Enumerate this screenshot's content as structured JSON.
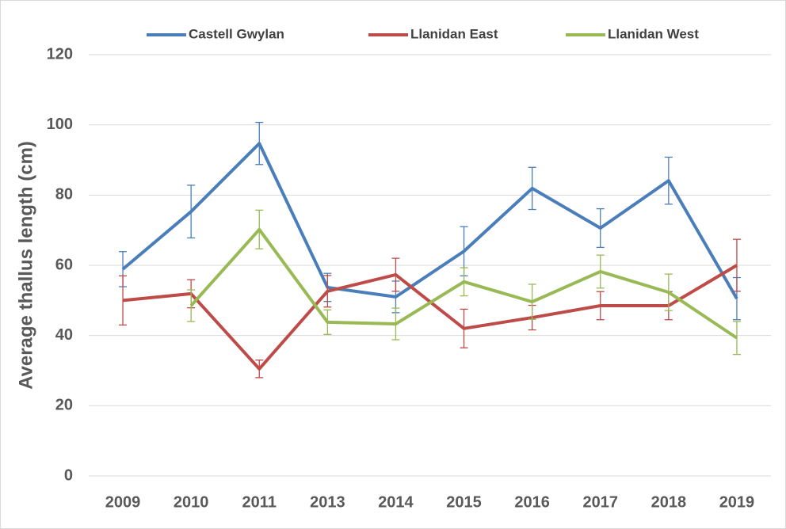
{
  "chart_data": {
    "type": "line",
    "y_label": "Average thallus length (cm)",
    "categories": [
      "2009",
      "2010",
      "2011",
      "2013",
      "2014",
      "2015",
      "2016",
      "2017",
      "2018",
      "2019"
    ],
    "series": [
      {
        "name": "Castell Gwylan",
        "color": "#4a7ebb",
        "values": [
          58.9,
          75.3,
          94.7,
          53.7,
          51,
          64,
          81.9,
          70.6,
          84.1,
          50.5
        ],
        "errors": [
          5,
          7.5,
          6,
          4,
          4.5,
          7,
          6,
          5.5,
          6.7,
          6
        ]
      },
      {
        "name": "Llanidan East",
        "color": "#be4b48",
        "values": [
          50,
          51.9,
          30.5,
          52.6,
          57.3,
          42,
          45.1,
          48.5,
          48.5,
          60
        ],
        "errors": [
          7,
          4,
          2.5,
          4.5,
          4.7,
          5.5,
          3.5,
          4,
          4,
          7.4
        ]
      },
      {
        "name": "Llanidan West",
        "color": "#98b954",
        "values": [
          null,
          48.5,
          70.2,
          43.8,
          43.3,
          55.3,
          49.6,
          58.2,
          52.3,
          39.3
        ],
        "errors": [
          null,
          4.5,
          5.5,
          3.5,
          4.5,
          4,
          5,
          4.7,
          5.2,
          4.7
        ]
      }
    ],
    "ylim": [
      0,
      120
    ],
    "yticks": [
      0,
      20,
      40,
      60,
      80,
      100,
      120
    ],
    "grid": true
  }
}
